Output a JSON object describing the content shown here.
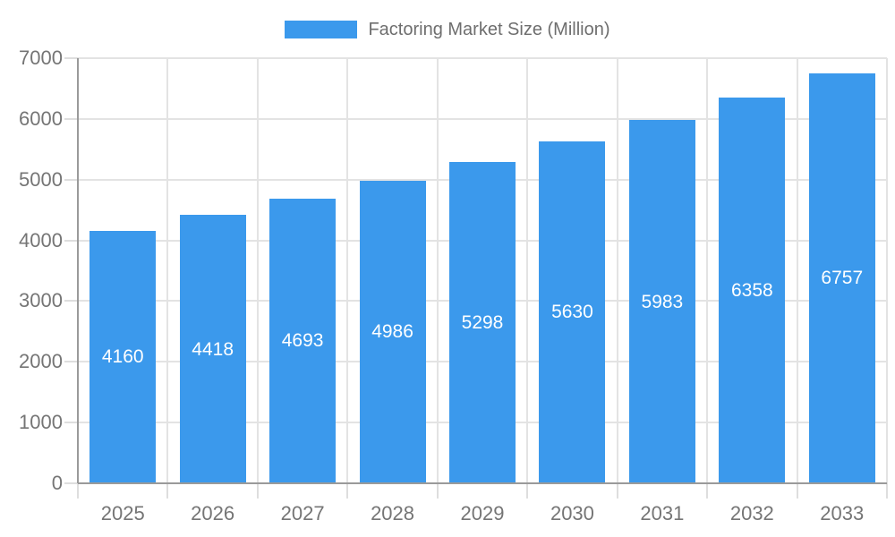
{
  "legend": {
    "label": "Factoring Market Size (Million)"
  },
  "chart_data": {
    "type": "bar",
    "title": "Factoring Market Size (Million)",
    "series_name": "Factoring Market Size (Million)",
    "categories": [
      "2025",
      "2026",
      "2027",
      "2028",
      "2029",
      "2030",
      "2031",
      "2032",
      "2033"
    ],
    "values": [
      4160,
      4418,
      4693,
      4986,
      5298,
      5630,
      5983,
      6358,
      6757
    ],
    "xlabel": "",
    "ylabel": "",
    "ylim": [
      0,
      7000
    ],
    "yticks": [
      0,
      1000,
      2000,
      3000,
      4000,
      5000,
      6000,
      7000
    ],
    "grid": true,
    "legend_position": "top",
    "bar_color": "#3b99ec",
    "grid_color": "#e3e3e3",
    "tick_color": "#dedede",
    "axis_color": "#9a9a9a",
    "label_color": "#757575",
    "legend_text_color": "#6e6e6e",
    "value_label_color": "#ffffff"
  }
}
